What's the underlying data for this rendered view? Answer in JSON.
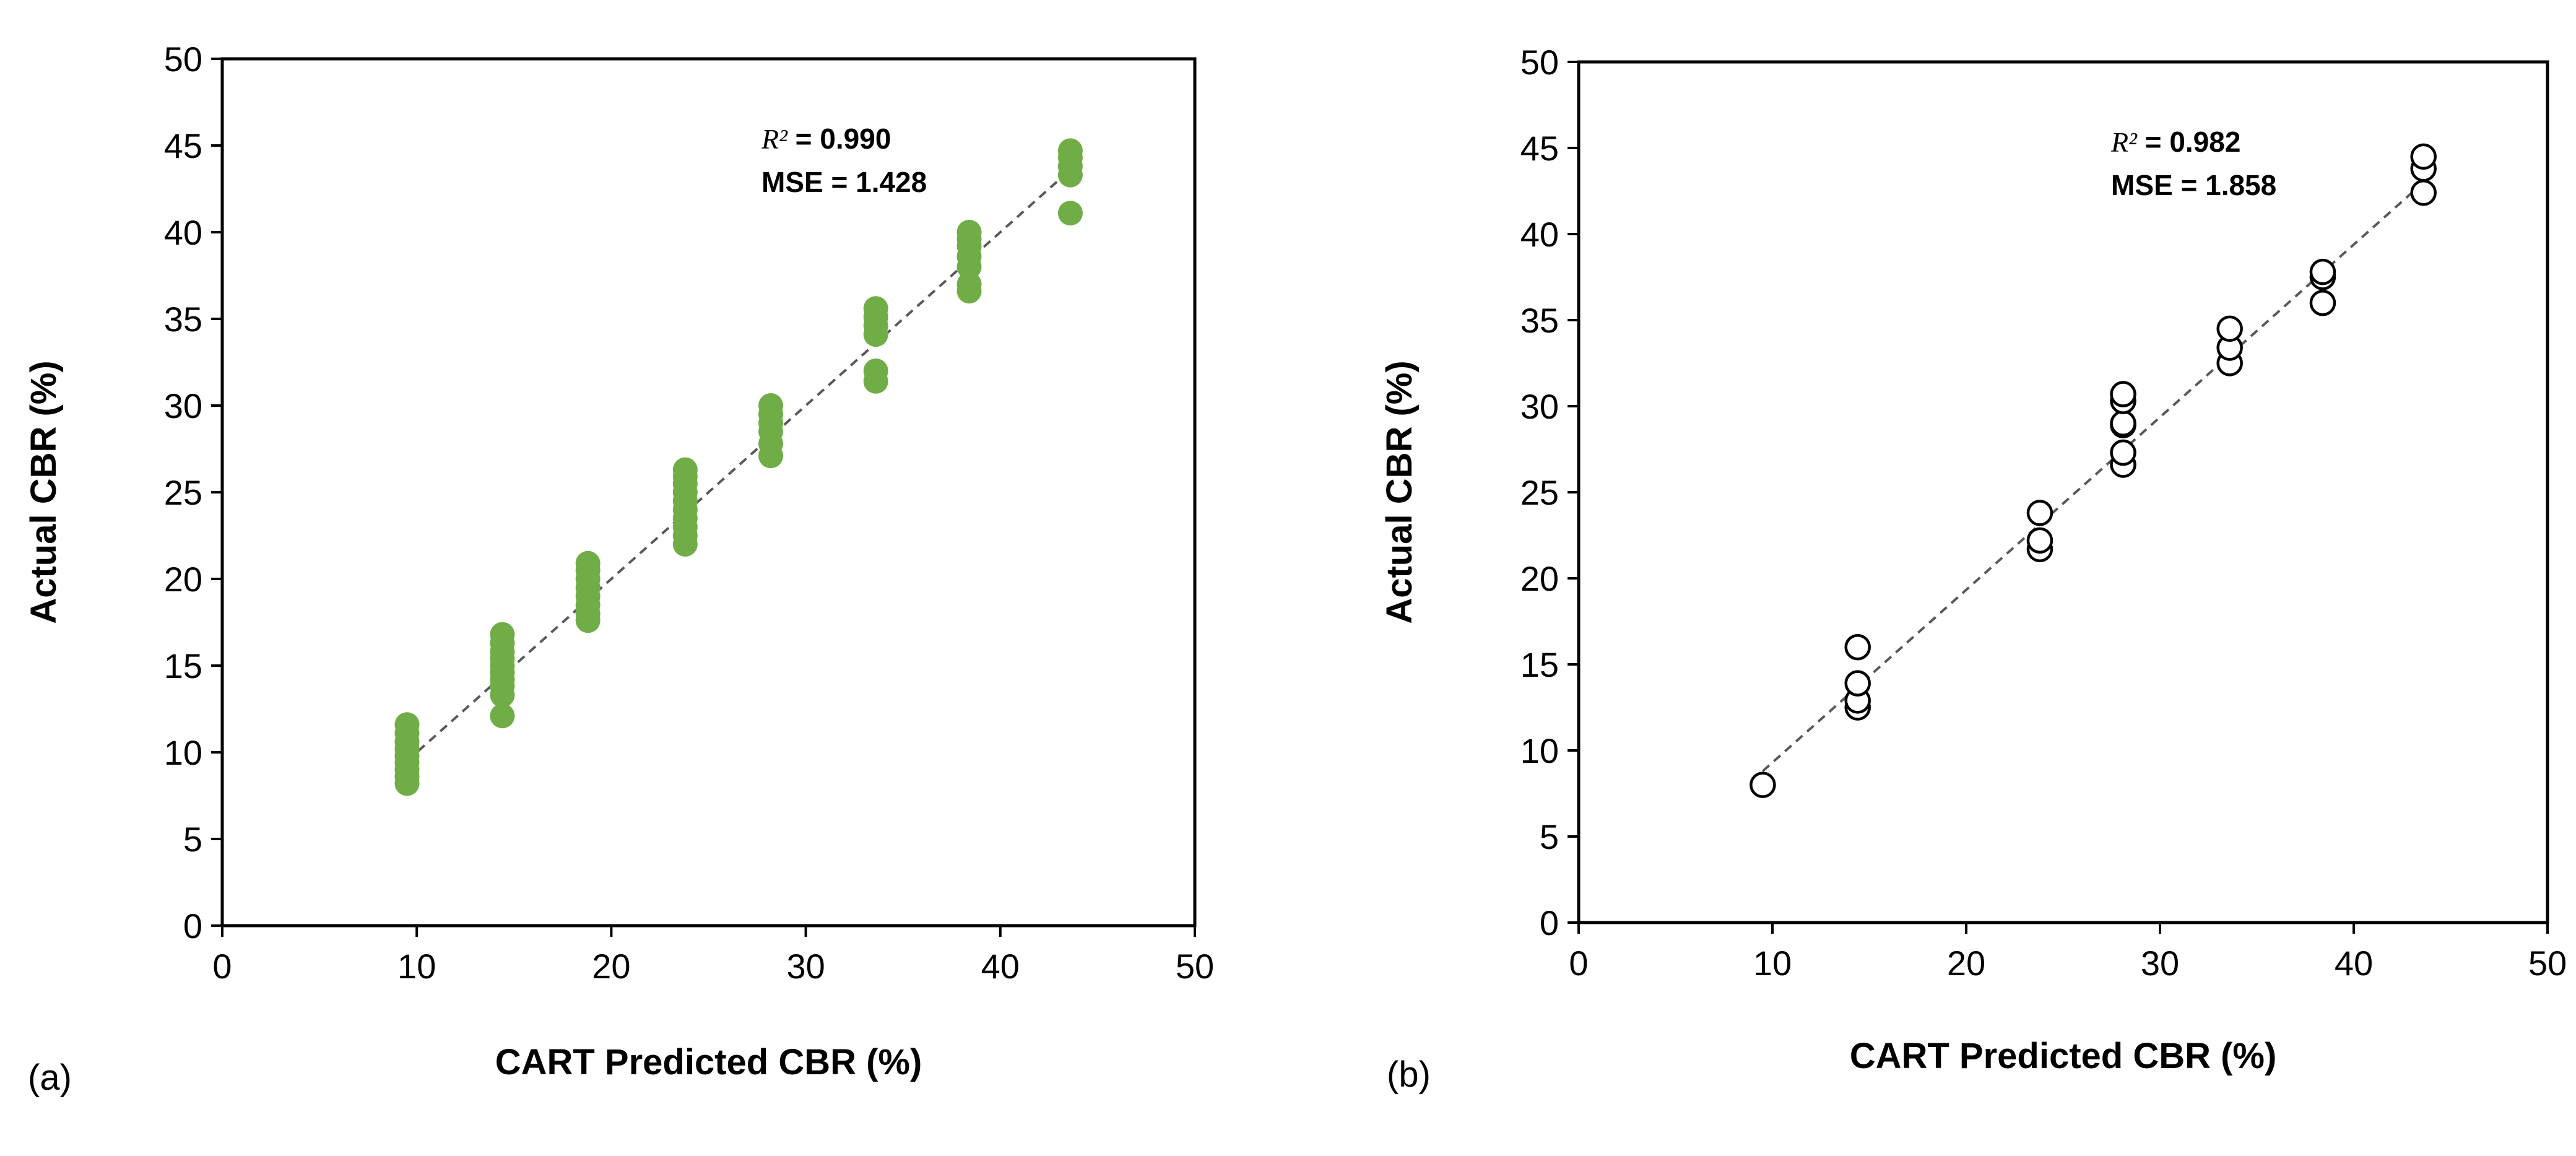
{
  "chart_data": [
    {
      "type": "scatter",
      "panel_label": "(a)",
      "xlabel": "CART Predicted CBR (%)",
      "ylabel": "Actual CBR (%)",
      "xlim": [
        0,
        50
      ],
      "ylim": [
        0,
        50
      ],
      "xticks": [
        "0",
        "10",
        "20",
        "30",
        "40",
        "50"
      ],
      "yticks": [
        "0",
        "5",
        "10",
        "15",
        "20",
        "25",
        "30",
        "35",
        "40",
        "45",
        "50"
      ],
      "marker": "filled",
      "color": "#70ad47",
      "fit_line": {
        "x": [
          9.5,
          43.6
        ],
        "y": [
          9.5,
          43.6
        ],
        "style": "dashed",
        "color": "#595959"
      },
      "stats": {
        "r2_label": "R²",
        "r2_value": "= 0.990",
        "mse_text": "MSE = 1.428"
      },
      "points": [
        [
          9.5,
          8.2
        ],
        [
          9.5,
          8.6
        ],
        [
          9.5,
          9.0
        ],
        [
          9.5,
          9.4
        ],
        [
          9.5,
          9.8
        ],
        [
          9.5,
          10.2
        ],
        [
          9.5,
          10.6
        ],
        [
          9.5,
          11.1
        ],
        [
          9.5,
          11.6
        ],
        [
          14.4,
          12.1
        ],
        [
          14.4,
          13.3
        ],
        [
          14.4,
          13.8
        ],
        [
          14.4,
          14.2
        ],
        [
          14.4,
          14.6
        ],
        [
          14.4,
          15.0
        ],
        [
          14.4,
          15.4
        ],
        [
          14.4,
          15.8
        ],
        [
          14.4,
          16.3
        ],
        [
          14.4,
          16.8
        ],
        [
          18.8,
          17.6
        ],
        [
          18.8,
          18.0
        ],
        [
          18.8,
          18.5
        ],
        [
          18.8,
          19.0
        ],
        [
          18.8,
          19.5
        ],
        [
          18.8,
          20.0
        ],
        [
          18.8,
          20.5
        ],
        [
          18.8,
          20.9
        ],
        [
          23.8,
          22.0
        ],
        [
          23.8,
          22.5
        ],
        [
          23.8,
          23.0
        ],
        [
          23.8,
          23.5
        ],
        [
          23.8,
          24.0
        ],
        [
          23.8,
          24.5
        ],
        [
          23.8,
          25.0
        ],
        [
          23.8,
          25.5
        ],
        [
          23.8,
          25.9
        ],
        [
          23.8,
          26.3
        ],
        [
          28.2,
          27.1
        ],
        [
          28.2,
          27.8
        ],
        [
          28.2,
          28.5
        ],
        [
          28.2,
          29.0
        ],
        [
          28.2,
          29.5
        ],
        [
          28.2,
          30.0
        ],
        [
          33.6,
          31.4
        ],
        [
          33.6,
          32.0
        ],
        [
          33.6,
          34.1
        ],
        [
          33.6,
          34.6
        ],
        [
          33.6,
          35.1
        ],
        [
          33.6,
          35.6
        ],
        [
          38.4,
          36.6
        ],
        [
          38.4,
          37.0
        ],
        [
          38.4,
          38.0
        ],
        [
          38.4,
          38.6
        ],
        [
          38.4,
          39.2
        ],
        [
          38.4,
          39.6
        ],
        [
          38.4,
          40.0
        ],
        [
          43.6,
          41.1
        ],
        [
          43.6,
          43.3
        ],
        [
          43.6,
          43.8
        ],
        [
          43.6,
          44.3
        ],
        [
          43.6,
          44.7
        ]
      ]
    },
    {
      "type": "scatter",
      "panel_label": "(b)",
      "xlabel": "CART Predicted CBR (%)",
      "ylabel": "Actual CBR (%)",
      "xlim": [
        0,
        50
      ],
      "ylim": [
        0,
        50
      ],
      "xticks": [
        "0",
        "10",
        "20",
        "30",
        "40",
        "50"
      ],
      "yticks": [
        "0",
        "5",
        "10",
        "15",
        "20",
        "25",
        "30",
        "35",
        "40",
        "45",
        "50"
      ],
      "marker": "hollow",
      "color": "#000000",
      "fit_line": {
        "x": [
          9.5,
          43.6
        ],
        "y": [
          8.8,
          43.0
        ],
        "style": "dashed",
        "color": "#595959"
      },
      "stats": {
        "r2_label": "R²",
        "r2_value": "= 0.982",
        "mse_text": "MSE = 1.858"
      },
      "points": [
        [
          9.5,
          8.0
        ],
        [
          14.4,
          12.5
        ],
        [
          14.4,
          12.9
        ],
        [
          14.4,
          13.9
        ],
        [
          14.4,
          16.0
        ],
        [
          23.8,
          21.7
        ],
        [
          23.8,
          22.2
        ],
        [
          23.8,
          23.8
        ],
        [
          28.1,
          26.6
        ],
        [
          28.1,
          27.3
        ],
        [
          28.1,
          28.9
        ],
        [
          28.1,
          29.0
        ],
        [
          28.1,
          30.3
        ],
        [
          28.1,
          30.7
        ],
        [
          33.6,
          32.5
        ],
        [
          33.6,
          33.4
        ],
        [
          33.6,
          34.5
        ],
        [
          38.4,
          36.0
        ],
        [
          38.4,
          37.5
        ],
        [
          38.4,
          37.8
        ],
        [
          43.6,
          42.4
        ],
        [
          43.6,
          43.8
        ],
        [
          43.6,
          44.5
        ]
      ]
    }
  ]
}
